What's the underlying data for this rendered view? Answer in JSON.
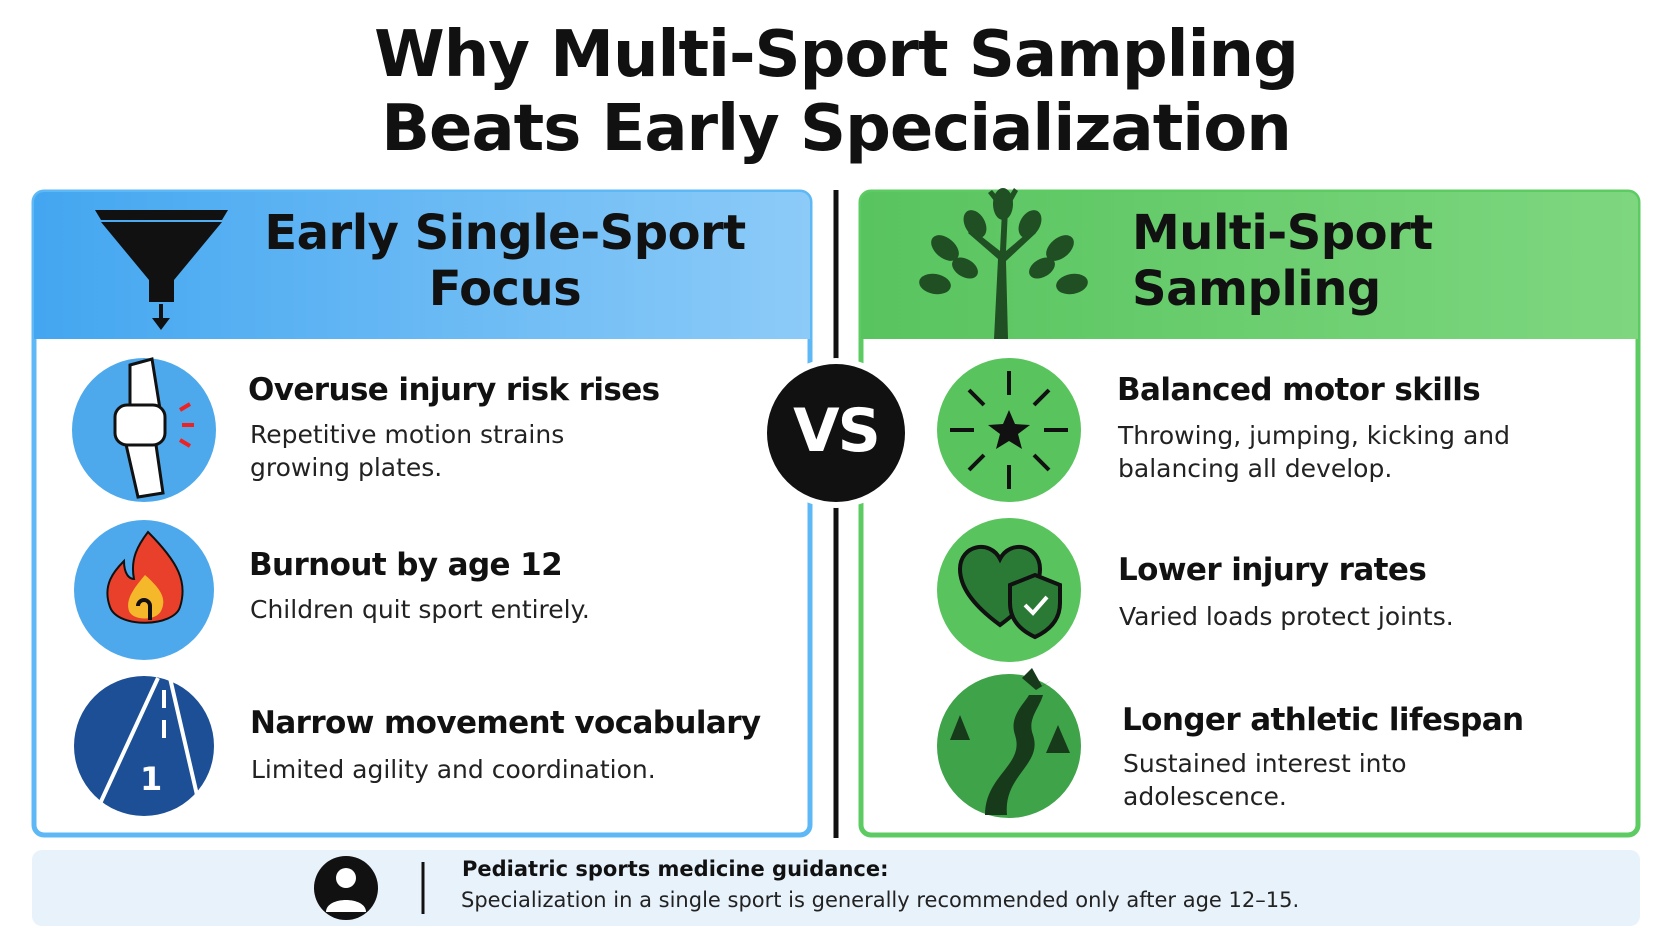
{
  "title_lines": [
    "Why Multi-Sport Sampling",
    "Beats Early Specialization"
  ],
  "left": {
    "title": "Early Single-Sport Focus",
    "items": [
      {
        "heading": "Overuse injury risk rises",
        "text": "Repetitive motion strains growing plates."
      },
      {
        "heading": "Burnout by age 12",
        "text": "Children quit sport entirely."
      },
      {
        "heading": "Narrow movement vocabulary",
        "text": "Limited agility and coordination."
      }
    ]
  },
  "vs": "VS",
  "right": {
    "title": "Multi-Sport Sampling",
    "items": [
      {
        "heading": "Balanced motor skills",
        "text": "Throwing, jumping, kicking and balancing all develop."
      },
      {
        "heading": "Lower injury rates",
        "text": "Varied loads protect joints."
      },
      {
        "heading": "Longer athletic lifespan",
        "text": "Sustained interest into adolescence."
      }
    ]
  },
  "footer": {
    "heading": "Pediatric sports medicine guidance:",
    "text": "Specialization in a single sport is generally recommended only after age 12–15."
  }
}
